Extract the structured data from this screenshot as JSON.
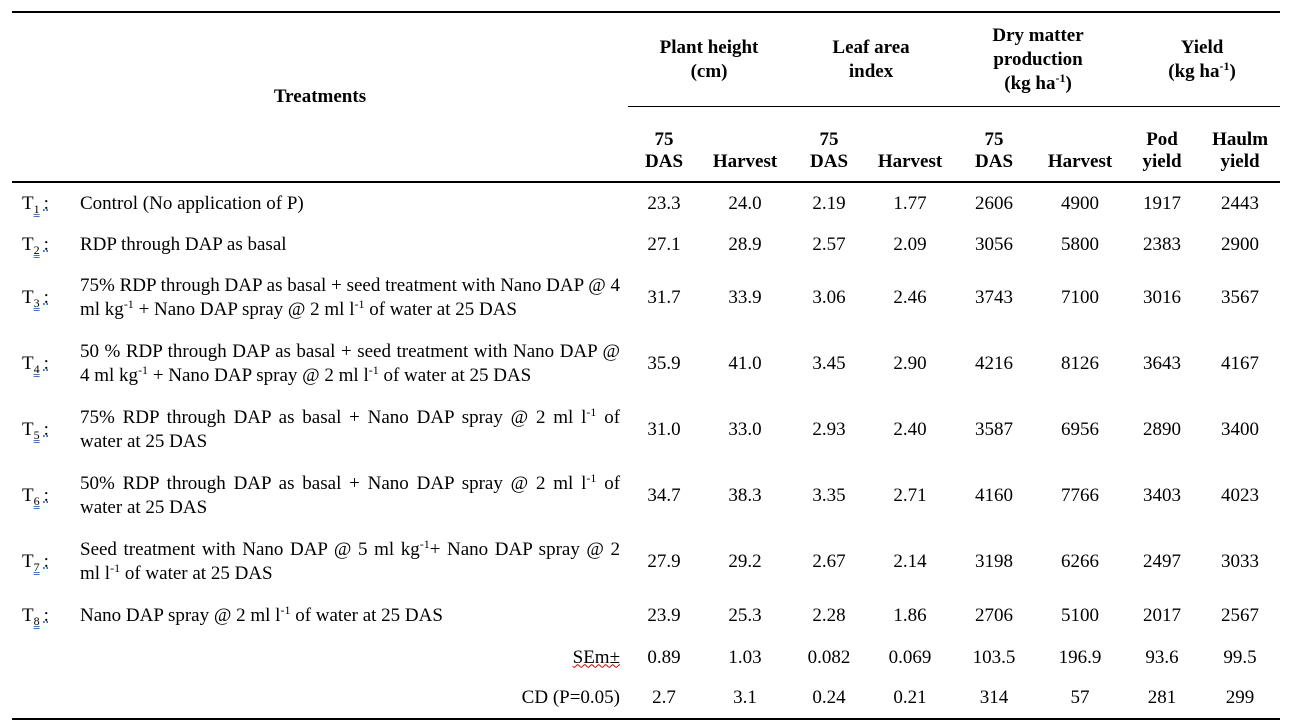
{
  "table": {
    "header": {
      "treatments": "Treatments",
      "groups": [
        [
          "Plant height\n(cm)"
        ],
        [
          "Leaf area\nindex"
        ],
        [
          "Dry matter\nproduction\n(kg ha",
          "-1",
          ")"
        ],
        [
          "Yield\n(kg ha",
          "-1",
          ")"
        ]
      ],
      "subheaders": [
        "75\nDAS",
        "Harvest",
        "75\nDAS",
        "Harvest",
        "75\nDAS",
        "Harvest",
        "Pod\nyield",
        "Haulm\nyield"
      ]
    },
    "rows": [
      {
        "letter": "T",
        "sub": "1",
        "sep": ":",
        "treatment": [
          "Control (No application of P)"
        ],
        "values": [
          "23.3",
          "24.0",
          "2.19",
          "1.77",
          "2606",
          "4900",
          "1917",
          "2443"
        ]
      },
      {
        "letter": "T",
        "sub": "2",
        "sep": ":",
        "treatment": [
          "RDP through DAP as basal"
        ],
        "values": [
          "27.1",
          "28.9",
          "2.57",
          "2.09",
          "3056",
          "5800",
          "2383",
          "2900"
        ]
      },
      {
        "letter": "T",
        "sub": "3",
        "sep": ":",
        "treatment": [
          "75% RDP through DAP as basal + seed treatment with Nano DAP @ 4 ml kg",
          "-1",
          " + Nano DAP spray @ 2 ml l",
          "-1",
          " of water at 25 DAS"
        ],
        "values": [
          "31.7",
          "33.9",
          "3.06",
          "2.46",
          "3743",
          "7100",
          "3016",
          "3567"
        ]
      },
      {
        "letter": "T",
        "sub": "4",
        "sep": ":",
        "treatment": [
          "50 % RDP through DAP as basal + seed treatment with Nano DAP @ 4 ml kg",
          "-1",
          " + Nano DAP spray @ 2 ml l",
          "-1",
          " of water at 25 DAS"
        ],
        "values": [
          "35.9",
          "41.0",
          "3.45",
          "2.90",
          "4216",
          "8126",
          "3643",
          "4167"
        ]
      },
      {
        "letter": "T",
        "sub": "5",
        "sep": ":",
        "treatment": [
          "75% RDP through DAP as basal + Nano DAP spray @ 2 ml l",
          "-1",
          " of water at 25 DAS"
        ],
        "values": [
          "31.0",
          "33.0",
          "2.93",
          "2.40",
          "3587",
          "6956",
          "2890",
          "3400"
        ]
      },
      {
        "letter": "T",
        "sub": "6",
        "sep": ":",
        "treatment": [
          "50% RDP through DAP as basal + Nano DAP spray @ 2 ml l",
          "-1",
          " of water at 25 DAS"
        ],
        "values": [
          "34.7",
          "38.3",
          "3.35",
          "2.71",
          "4160",
          "7766",
          "3403",
          "4023"
        ]
      },
      {
        "letter": "T",
        "sub": "7",
        "sep": ":",
        "treatment": [
          "Seed treatment with Nano DAP @ 5 ml kg",
          "-1",
          "+ Nano DAP spray @ 2 ml l",
          "-1",
          " of water at 25 DAS"
        ],
        "values": [
          "27.9",
          "29.2",
          "2.67",
          "2.14",
          "3198",
          "6266",
          "2497",
          "3033"
        ]
      },
      {
        "letter": "T",
        "sub": "8",
        "sep": ":",
        "treatment": [
          "Nano DAP spray @ 2 ml l",
          "-1",
          " of water at 25 DAS"
        ],
        "values": [
          "23.9",
          "25.3",
          "2.28",
          "1.86",
          "2706",
          "5100",
          "2017",
          "2567"
        ]
      }
    ],
    "stats": [
      {
        "label": "SEm±",
        "values": [
          "0.89",
          "1.03",
          "0.082",
          "0.069",
          "103.5",
          "196.9",
          "93.6",
          "99.5"
        ]
      },
      {
        "label": "CD (P=0.05)",
        "values": [
          "2.7",
          "3.1",
          "0.24",
          "0.21",
          "314",
          "57",
          "281",
          "299"
        ]
      }
    ]
  }
}
